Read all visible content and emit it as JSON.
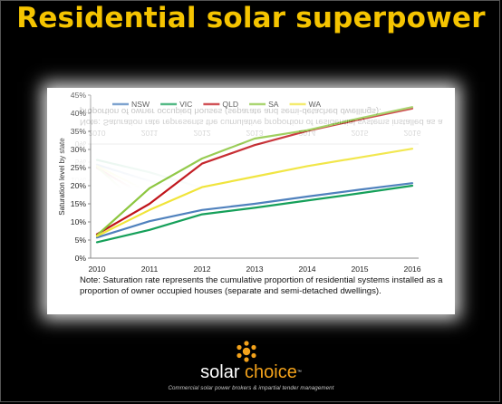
{
  "slide": {
    "title": "Residential solar superpower",
    "note": "Note: Saturation rate represents the cumulative proportion of residential systems installed as a proportion of owner occupied houses (separate and semi-detached dwellings).",
    "logo_primary": "solar",
    "logo_accent": "choice",
    "logo_trademark": "™",
    "tagline": "Commercial solar power brokers & impartial tender management"
  },
  "colors": {
    "title": "#f5c400",
    "background": "#000000",
    "logo_accent": "#f3a21b"
  },
  "chart_data": {
    "type": "line",
    "title": "",
    "xlabel": "",
    "ylabel": "Saturation level by state",
    "x": [
      "2010",
      "2011",
      "2012",
      "2013",
      "2014",
      "2015",
      "2016"
    ],
    "y_ticks": [
      "0%",
      "5%",
      "10%",
      "15%",
      "20%",
      "25%",
      "30%",
      "35%",
      "40%",
      "45%"
    ],
    "ylim": [
      0,
      45
    ],
    "y_unit": "%",
    "grid": false,
    "legend_position": "top",
    "series": [
      {
        "name": "NSW",
        "color": "#4f81bd",
        "values": [
          5.7,
          10.2,
          13.3,
          15.0,
          17.0,
          18.9,
          20.7
        ]
      },
      {
        "name": "VIC",
        "color": "#16a05a",
        "values": [
          4.4,
          7.8,
          12.1,
          13.9,
          15.9,
          17.9,
          20.0
        ]
      },
      {
        "name": "QLD",
        "color": "#c0141a",
        "values": [
          6.6,
          15.0,
          26.1,
          31.2,
          35.1,
          38.3,
          41.3
        ]
      },
      {
        "name": "SA",
        "color": "#8cc63f",
        "values": [
          6.3,
          19.3,
          27.5,
          33.0,
          35.3,
          38.6,
          41.7
        ]
      },
      {
        "name": "WA",
        "color": "#f0e43a",
        "values": [
          6.1,
          13.3,
          19.6,
          22.5,
          25.4,
          27.8,
          30.2
        ]
      }
    ]
  }
}
